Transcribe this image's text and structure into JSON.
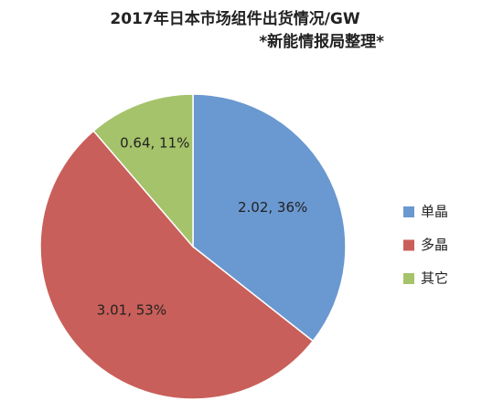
{
  "chart_data": {
    "type": "pie",
    "title": "2017年日本市场组件出货情况/GW",
    "subtitle": "*新能情报局整理*",
    "categories": [
      "单晶",
      "多晶",
      "其它"
    ],
    "values": [
      2.02,
      3.01,
      0.64
    ],
    "value_labels": [
      "2.02, 36%",
      "3.01, 53%",
      "0.64, 11%"
    ],
    "colors": [
      "#6a98d0",
      "#c95f5a",
      "#a5c36a"
    ],
    "legend": "right"
  }
}
